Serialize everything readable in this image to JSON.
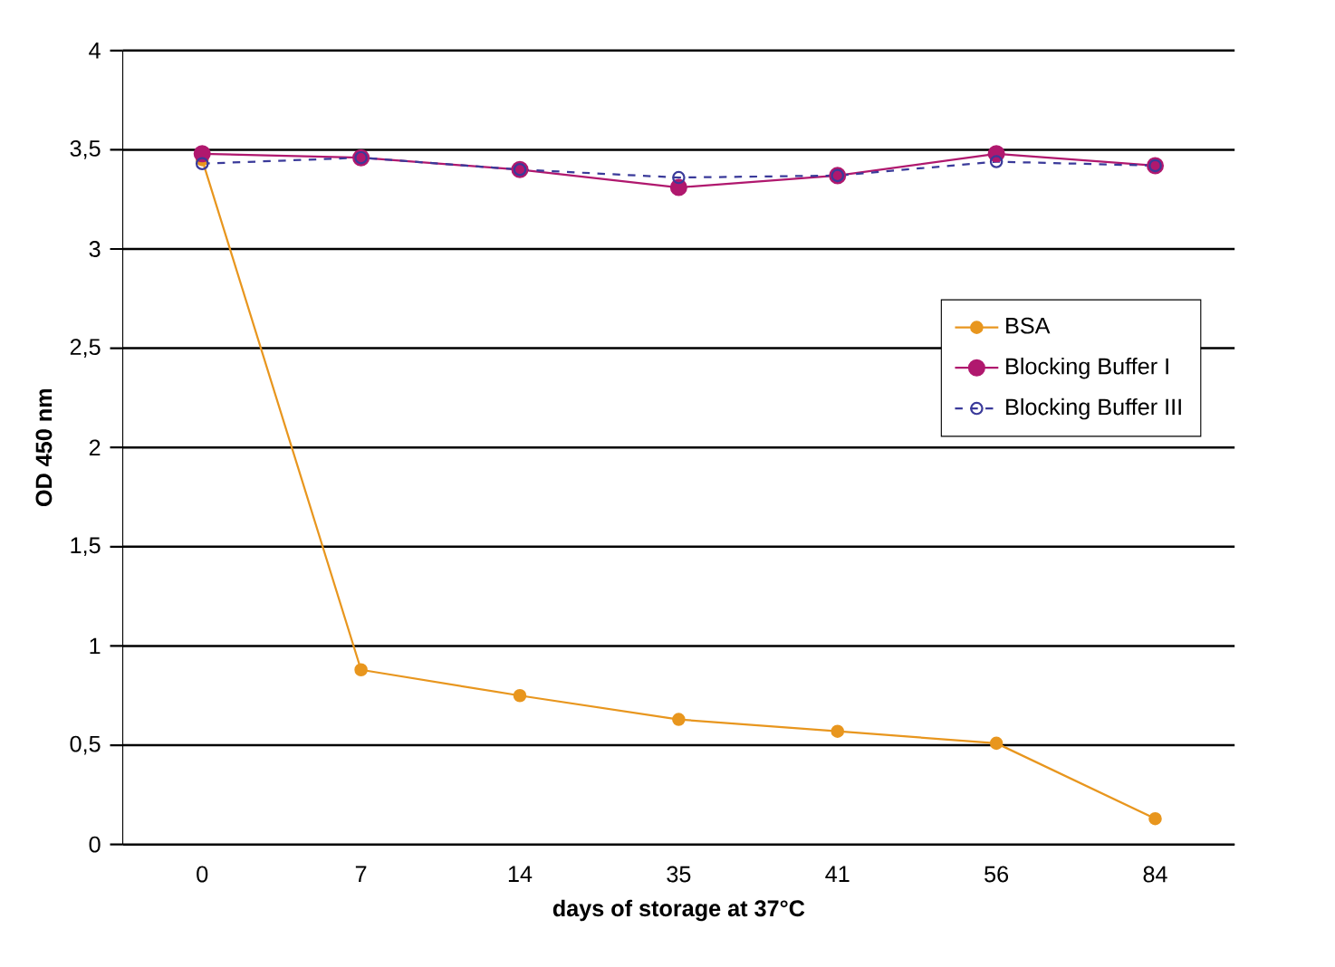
{
  "chart_data": {
    "type": "line",
    "xlabel": "days of storage at 37°C",
    "ylabel": "OD 450 nm",
    "categories": [
      "0",
      "7",
      "14",
      "35",
      "41",
      "56",
      "84"
    ],
    "ylim": [
      0,
      4
    ],
    "yticks": [
      0,
      {
        "value": 0.5,
        "label": "0,5"
      },
      1,
      {
        "value": 1.5,
        "label": "1,5"
      },
      2,
      {
        "value": 2.5,
        "label": "2,5"
      },
      3,
      {
        "value": 3.5,
        "label": "3,5"
      },
      4
    ],
    "grid": "y",
    "legend": "right",
    "marker": "circle",
    "series": [
      {
        "name": "BSA",
        "color": "#e8961e",
        "line_style": "solid",
        "values": [
          3.45,
          0.88,
          0.75,
          0.63,
          0.57,
          0.51,
          0.13
        ]
      },
      {
        "name": "Blocking Buffer I",
        "color": "#b0186e",
        "line_style": "solid",
        "values": [
          3.48,
          3.46,
          3.4,
          3.31,
          3.37,
          3.48,
          3.42
        ]
      },
      {
        "name": "Blocking Buffer III",
        "color": "#3a3a9a",
        "line_style": "dashed",
        "marker": "open circle",
        "values": [
          3.43,
          3.46,
          3.4,
          3.36,
          3.37,
          3.44,
          3.42
        ]
      }
    ]
  }
}
